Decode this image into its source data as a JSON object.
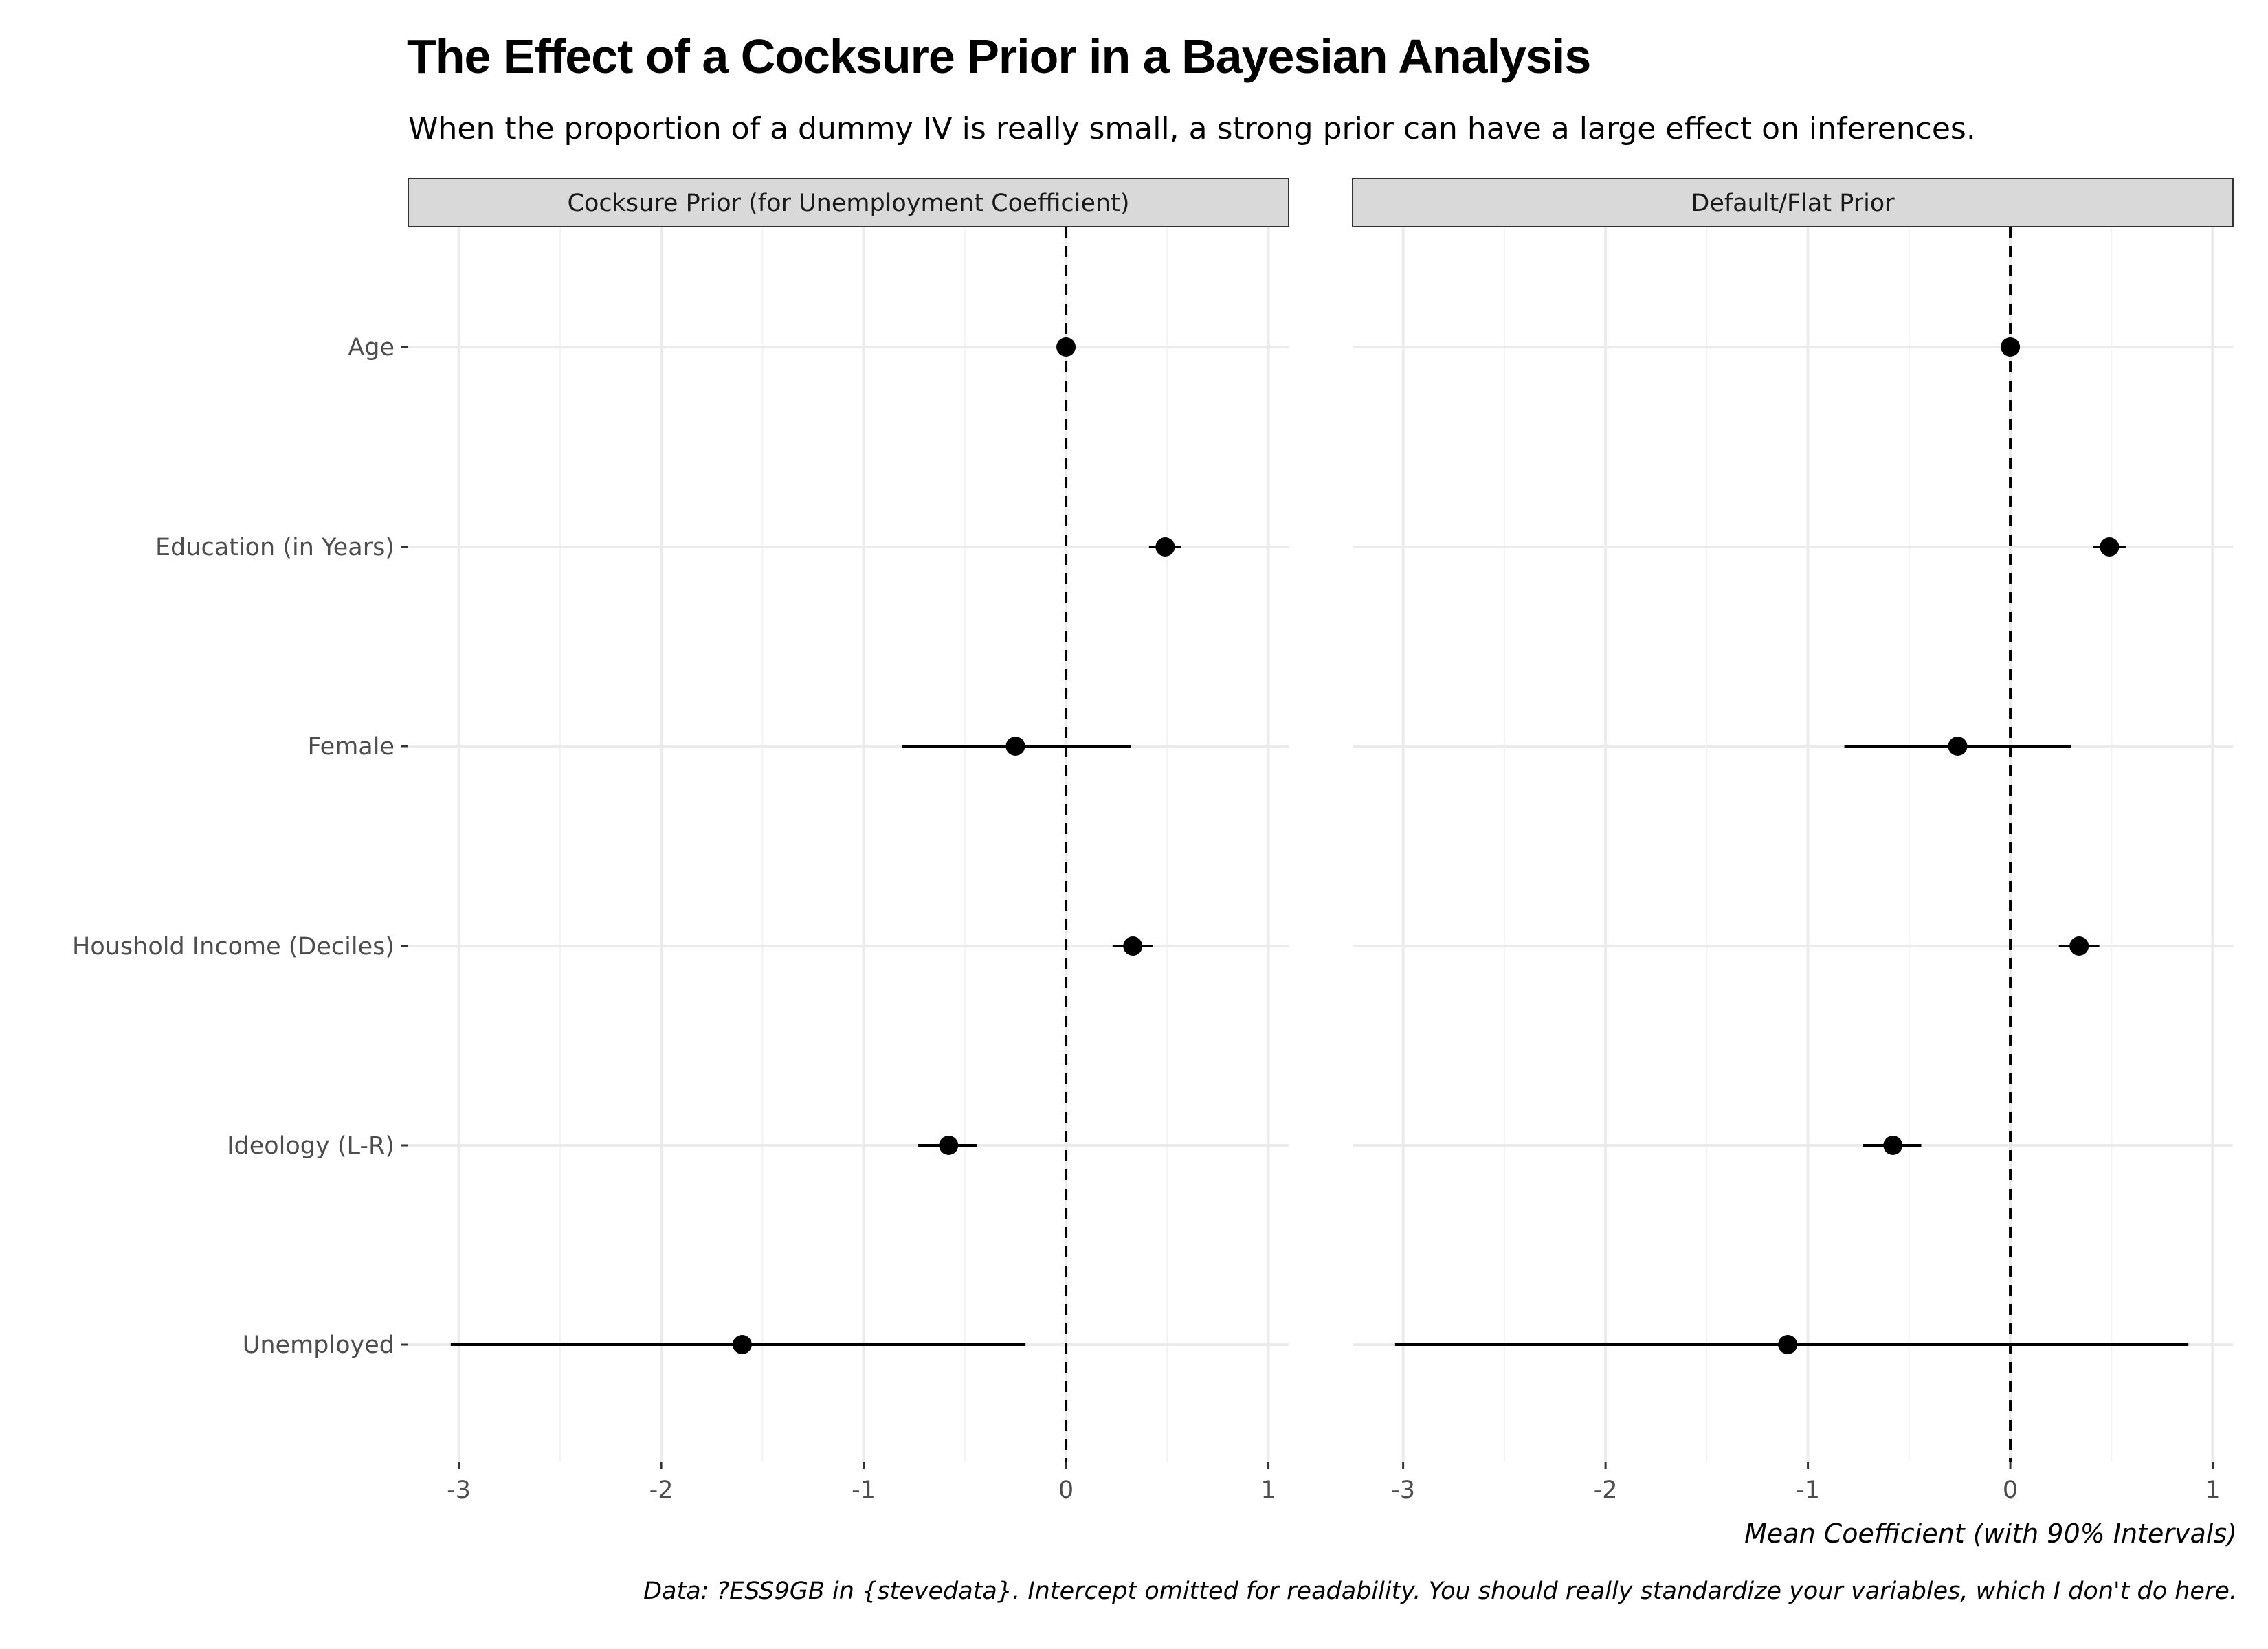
{
  "chart_data": {
    "type": "dot-and-interval (coefficient plot)",
    "title": "The Effect of a Cocksure Prior in a Bayesian Analysis",
    "subtitle": "When the proportion of a dummy IV is really small, a strong prior can have a large effect on inferences.",
    "xlabel": "Mean Coefficient (with 90% Intervals)",
    "caption": "Data: ?ESS9GB in {stevedata}. Intercept omitted for readability. You should really standardize your variables, which I don't do here.",
    "xlim": [
      -3.25,
      1.1
    ],
    "x_ticks": [
      -3,
      -2,
      -1,
      0,
      1
    ],
    "x_tick_labels": [
      "-3",
      "-2",
      "-1",
      "0",
      "1"
    ],
    "reference_line": 0,
    "grid": true,
    "categories": [
      "Age",
      "Education (in Years)",
      "Female",
      "Houshold Income (Deciles)",
      "Ideology (L-R)",
      "Unemployed"
    ],
    "panels": [
      {
        "name": "Cocksure Prior (for Unemployment Coefficient)",
        "estimates": [
          0.0,
          0.49,
          -0.25,
          0.33,
          -0.58,
          -1.6
        ],
        "lower": [
          -0.01,
          0.41,
          -0.81,
          0.23,
          -0.73,
          -3.04
        ],
        "upper": [
          0.01,
          0.57,
          0.32,
          0.43,
          -0.44,
          -0.2
        ]
      },
      {
        "name": "Default/Flat Prior",
        "estimates": [
          0.0,
          0.49,
          -0.26,
          0.34,
          -0.58,
          -1.1
        ],
        "lower": [
          -0.01,
          0.41,
          -0.82,
          0.24,
          -0.73,
          -3.04
        ],
        "upper": [
          0.01,
          0.57,
          0.3,
          0.44,
          -0.44,
          0.88
        ]
      }
    ]
  }
}
